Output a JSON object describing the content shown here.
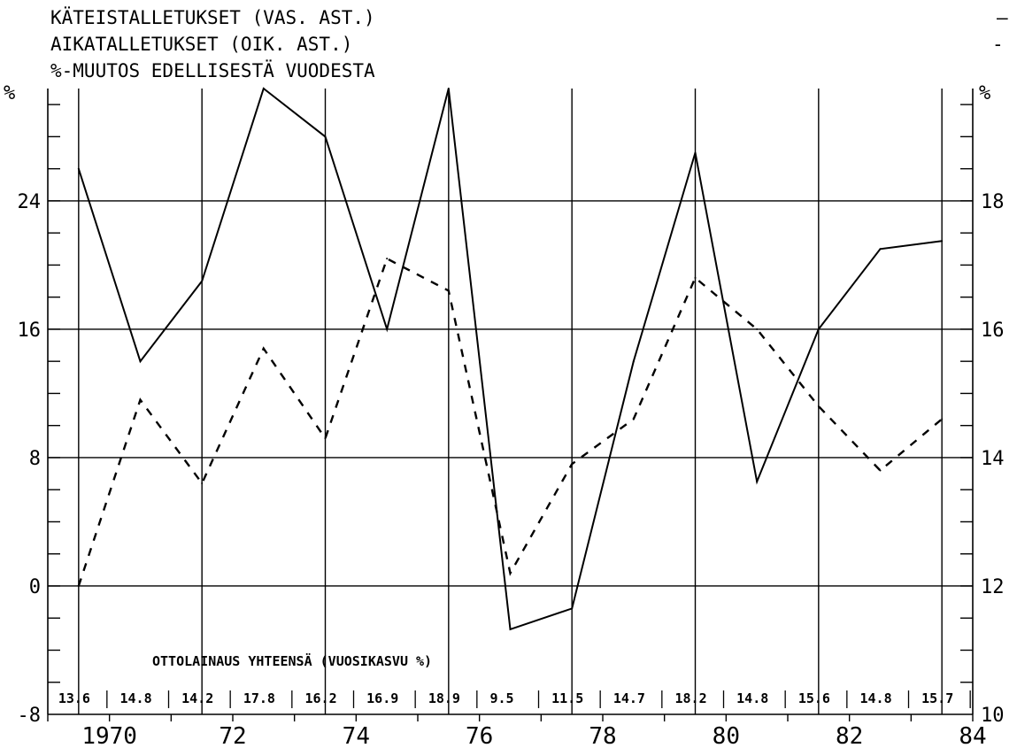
{
  "chart_data": {
    "type": "line",
    "title_lines": [
      "KÄTEISTALLETUKSET (VAS. AST.)",
      "AIKATALLETUKSET (OIK. AST.)",
      "%-MUUTOS EDELLISESTÄ VUODESTA"
    ],
    "legend": {
      "solid_symbol": "—",
      "dashed_symbol": "- -"
    },
    "left_axis": {
      "label": "%",
      "ticks": [
        "-8",
        "0",
        "8",
        "16",
        "24"
      ],
      "ylim": [
        -8,
        31
      ]
    },
    "right_axis": {
      "label": "%",
      "ticks": [
        "10",
        "12",
        "14",
        "16",
        "18"
      ],
      "ylim": [
        10,
        19.75
      ]
    },
    "x_axis": {
      "ticks": [
        "1970",
        "72",
        "74",
        "76",
        "78",
        "80",
        "82",
        "84"
      ],
      "xlim": [
        1969,
        1984
      ]
    },
    "grid": true,
    "series": [
      {
        "axis": "left",
        "style": "solid",
        "x": [
          1969.5,
          1970.5,
          1971.5,
          1972.5,
          1973.5,
          1974.5,
          1975.5,
          1976.5,
          1977.5,
          1978.5,
          1979.5,
          1980.5,
          1981.5,
          1982.5,
          1983.5
        ],
        "values": [
          26,
          14,
          19,
          31,
          28,
          16,
          31,
          -2.7,
          -1.4,
          14,
          27,
          6.5,
          16,
          21,
          21.5
        ]
      },
      {
        "axis": "right",
        "style": "dashed",
        "x": [
          1969.5,
          1970.5,
          1971.5,
          1972.5,
          1973.5,
          1974.5,
          1975.5,
          1976.5,
          1977.5,
          1978.5,
          1979.5,
          1980.5,
          1981.5,
          1982.5,
          1983.5
        ],
        "values": [
          12,
          14.9,
          13.6,
          15.7,
          14.3,
          17.1,
          16.6,
          12.2,
          13.9,
          14.6,
          16.8,
          16,
          14.8,
          13.8,
          14.6
        ]
      }
    ],
    "annotation": "OTTOLAINAUS YHTEENSÄ (VUOSIKASVU %)",
    "loan_labels": [
      "13.6",
      "14.8",
      "14.2",
      "17.8",
      "16.2",
      "16.9",
      "18.9",
      "9.5",
      "11.5",
      "14.7",
      "18.2",
      "14.8",
      "15.6",
      "14.8",
      "15.7"
    ]
  }
}
